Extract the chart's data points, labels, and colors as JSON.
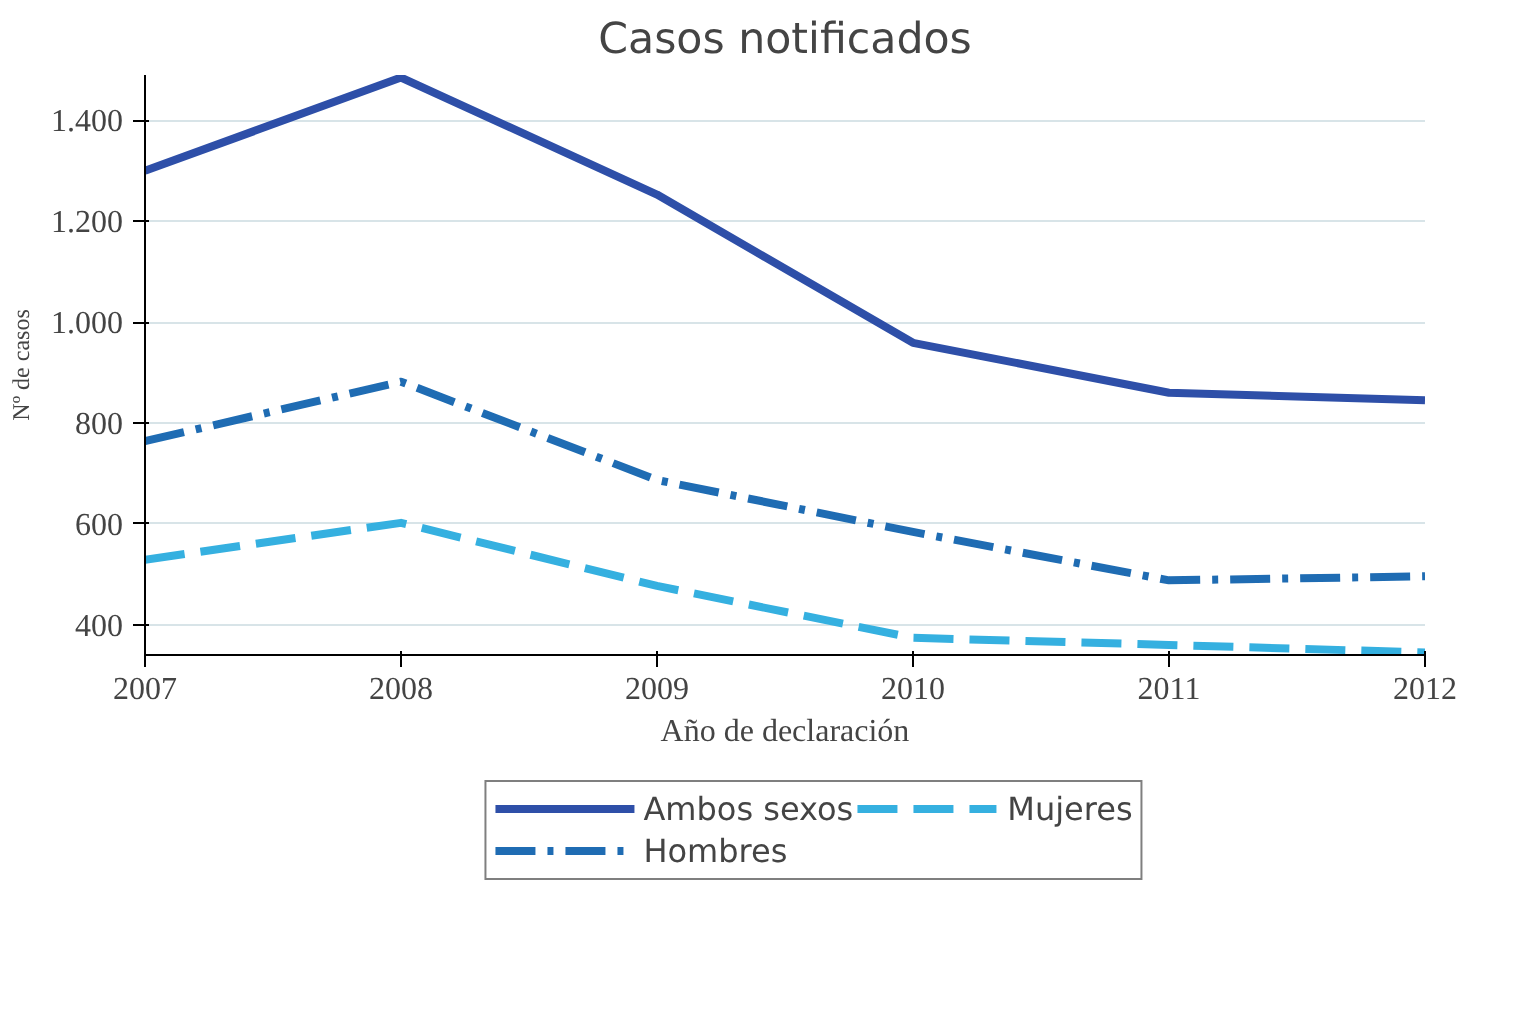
{
  "chart_data": {
    "type": "line",
    "title": "Casos notificados",
    "xlabel": "Año de declaración",
    "ylabel": "Nº de casos",
    "x": [
      2007,
      2008,
      2009,
      2010,
      2011,
      2012
    ],
    "series": [
      {
        "name": "Ambos sexos",
        "color": "#2e4fa8",
        "line_style": "solid",
        "values": [
          1300,
          1485,
          1253,
          959,
          860,
          845
        ]
      },
      {
        "name": "Hombres",
        "color": "#1f6cb3",
        "line_style": "dashdot",
        "values": [
          764,
          882,
          687,
          584,
          488,
          496
        ]
      },
      {
        "name": "Mujeres",
        "color": "#35b0e0",
        "line_style": "dashed",
        "values": [
          529,
          602,
          477,
          374,
          360,
          345
        ]
      }
    ],
    "xlim": [
      2007,
      2012
    ],
    "xticks": [
      2007,
      2008,
      2009,
      2010,
      2011,
      2012
    ],
    "ylim": [
      340,
      1490
    ],
    "yticks": [
      400,
      600,
      800,
      {
        "value": 1000,
        "label": "1.000"
      },
      {
        "value": 1200,
        "label": "1.200"
      },
      {
        "value": 1400,
        "label": "1.400"
      }
    ],
    "grid": "y",
    "legend": "bottom",
    "marker": "none"
  }
}
